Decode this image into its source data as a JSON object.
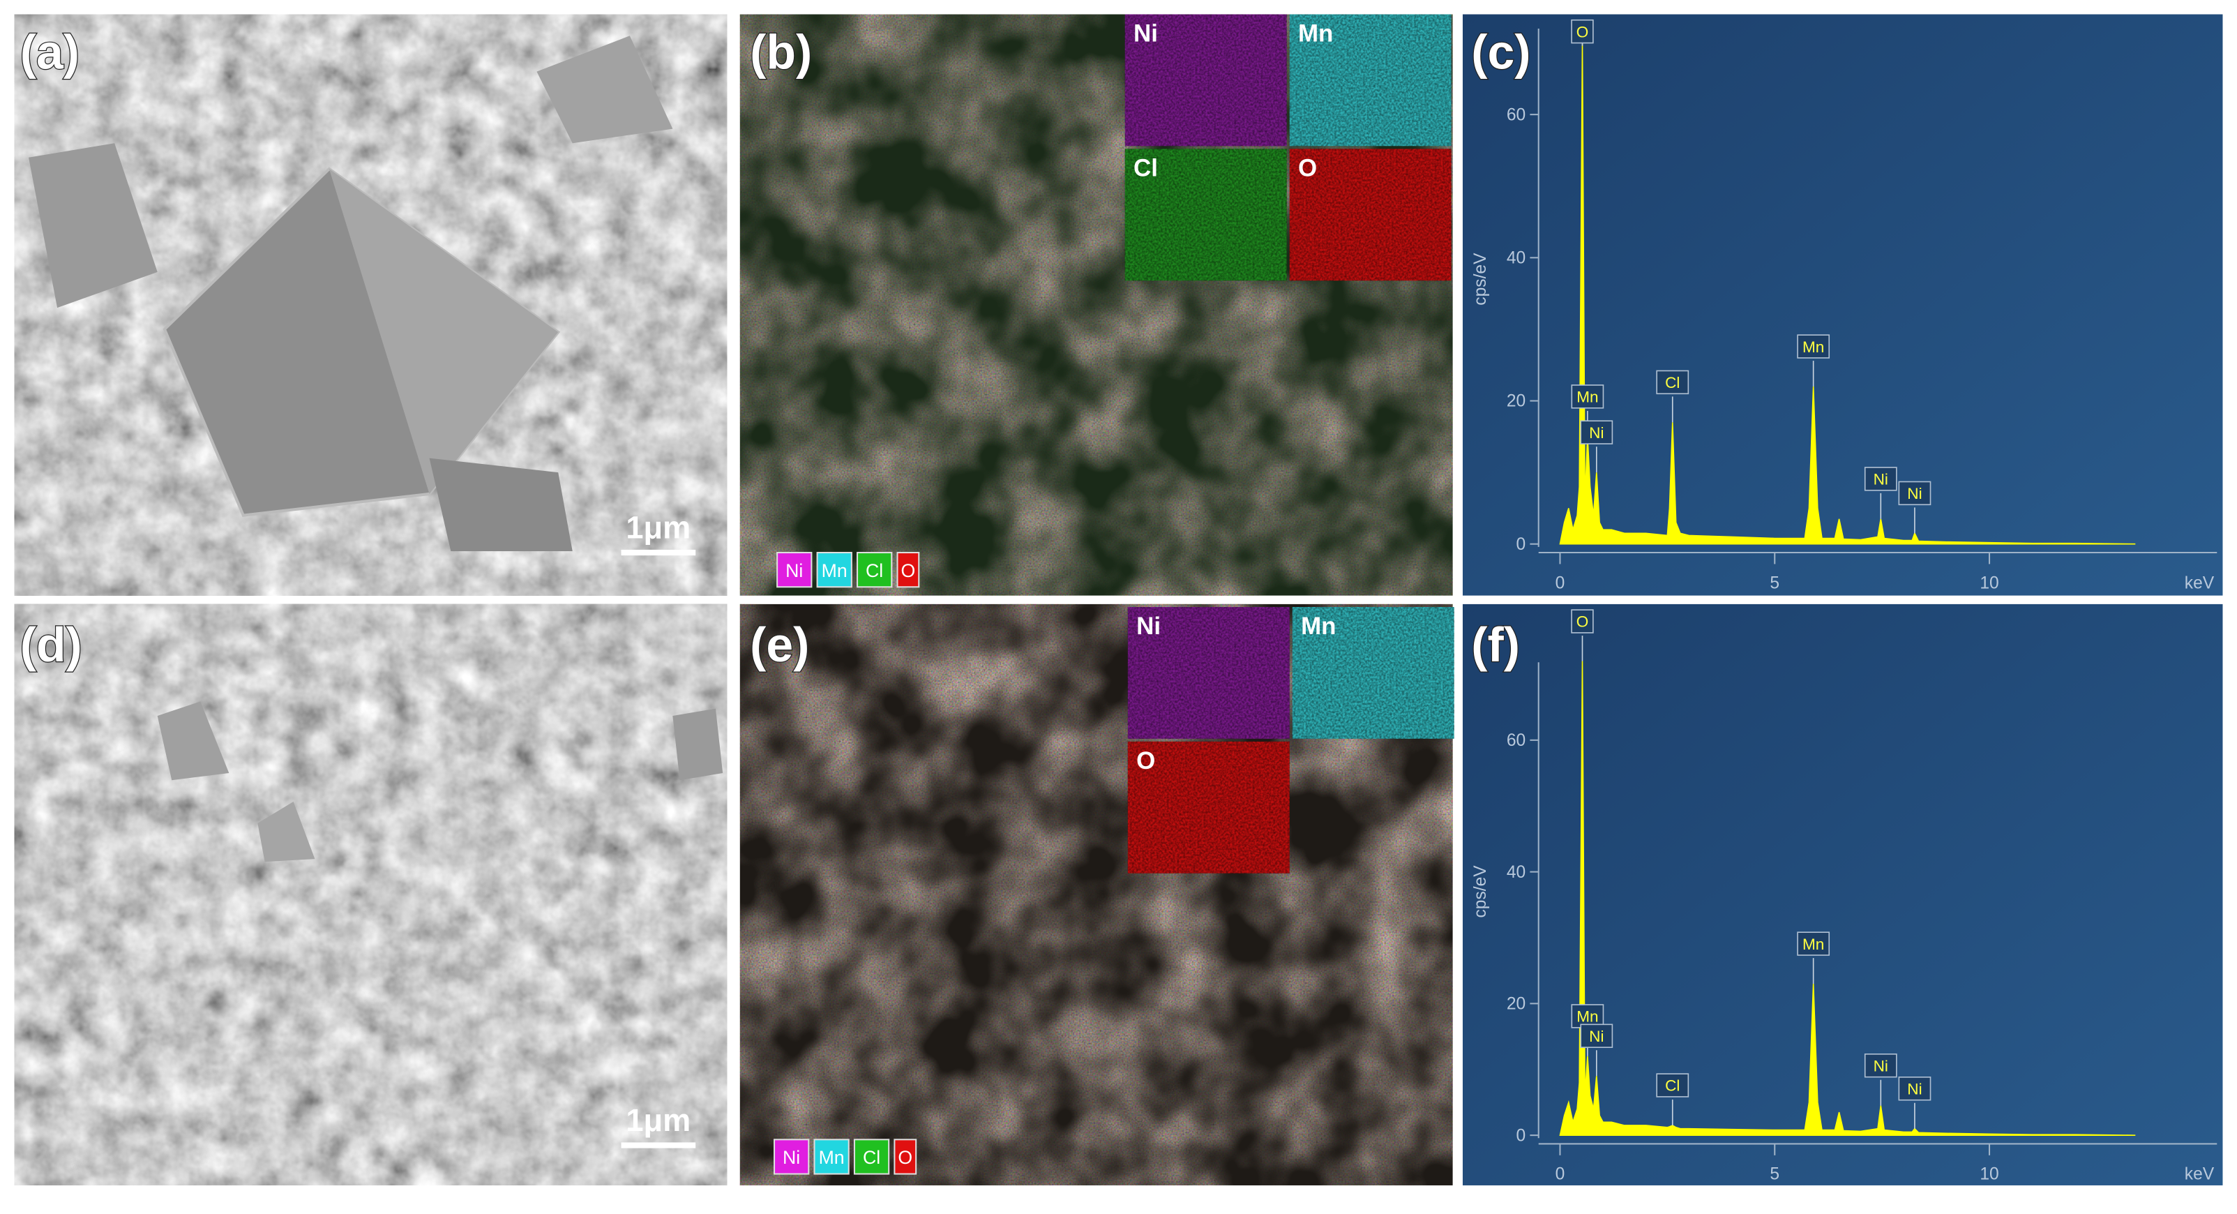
{
  "panels": {
    "a": {
      "label": "(a)",
      "scale_bar": "1μm"
    },
    "b": {
      "label": "(b)",
      "maps": [
        {
          "name": "Ni",
          "color": "#7a1a8c"
        },
        {
          "name": "Mn",
          "color": "#2fb3b8"
        },
        {
          "name": "Cl",
          "color": "#1f8a1f"
        },
        {
          "name": "O",
          "color": "#c40f0f"
        }
      ],
      "legend": [
        {
          "name": "Ni",
          "color": "#e01ee0"
        },
        {
          "name": "Mn",
          "color": "#22d6e0"
        },
        {
          "name": "Cl",
          "color": "#20c020"
        },
        {
          "name": "O",
          "color": "#e01010"
        }
      ]
    },
    "c": {
      "label": "(c)"
    },
    "d": {
      "label": "(d)",
      "scale_bar": "1μm"
    },
    "e": {
      "label": "(e)",
      "maps": [
        {
          "name": "Ni",
          "color": "#7a1a8c"
        },
        {
          "name": "Mn",
          "color": "#2fb3b8"
        },
        {
          "name": "O",
          "color": "#c40f0f"
        }
      ],
      "legend": [
        {
          "name": "Ni",
          "color": "#e01ee0"
        },
        {
          "name": "Mn",
          "color": "#22d6e0"
        },
        {
          "name": "Cl",
          "color": "#20c020"
        },
        {
          "name": "O",
          "color": "#e01010"
        }
      ]
    },
    "f": {
      "label": "(f)"
    }
  },
  "chart_data": [
    {
      "type": "area",
      "color": "#ffff00",
      "ylabel": "cps/eV",
      "xlabel": "keV",
      "xlim": [
        -0.5,
        15.3
      ],
      "ylim": [
        0,
        74
      ],
      "xticks": [
        0,
        5,
        10
      ],
      "yticks": [
        0,
        20,
        40,
        60
      ],
      "x": [
        0,
        0.1,
        0.2,
        0.3,
        0.4,
        0.45,
        0.52,
        0.58,
        0.64,
        0.7,
        0.78,
        0.85,
        0.92,
        1.0,
        1.2,
        1.5,
        2.0,
        2.5,
        2.55,
        2.62,
        2.7,
        2.8,
        3.0,
        4.0,
        5.0,
        5.7,
        5.8,
        5.9,
        6.0,
        6.1,
        6.4,
        6.5,
        6.6,
        7.0,
        7.4,
        7.47,
        7.55,
        8.0,
        8.2,
        8.26,
        8.35,
        9,
        10,
        11,
        12,
        13.4
      ],
      "values": [
        0,
        3,
        5,
        2,
        4,
        8,
        70,
        6,
        15,
        8,
        4,
        10,
        3,
        2,
        2,
        1.5,
        1.5,
        1.2,
        5,
        17,
        3,
        1.5,
        1.2,
        1,
        0.8,
        0.8,
        5,
        22,
        5,
        0.8,
        0.8,
        3.5,
        0.7,
        0.6,
        1,
        3.5,
        0.8,
        0.5,
        0.5,
        1.5,
        0.4,
        0.3,
        0.2,
        0.1,
        0.1,
        0
      ],
      "annotations": [
        {
          "text": "O",
          "x": 0.52,
          "y": 70
        },
        {
          "text": "Mn",
          "x": 0.64,
          "y": 15
        },
        {
          "text": "Ni",
          "x": 0.85,
          "y": 10
        },
        {
          "text": "Cl",
          "x": 2.62,
          "y": 17
        },
        {
          "text": "Mn",
          "x": 5.9,
          "y": 22
        },
        {
          "text": "Ni",
          "x": 7.47,
          "y": 3.5
        },
        {
          "text": "Ni",
          "x": 8.26,
          "y": 1.5
        }
      ]
    },
    {
      "type": "area",
      "color": "#ffff00",
      "ylabel": "cps/eV",
      "xlabel": "keV",
      "xlim": [
        -0.5,
        15.3
      ],
      "ylim": [
        0,
        74
      ],
      "xticks": [
        0,
        5,
        10
      ],
      "yticks": [
        0,
        20,
        40,
        60
      ],
      "x": [
        0,
        0.1,
        0.2,
        0.3,
        0.4,
        0.45,
        0.52,
        0.58,
        0.64,
        0.7,
        0.78,
        0.85,
        0.92,
        1.0,
        1.2,
        1.5,
        2.0,
        2.5,
        2.55,
        2.62,
        2.7,
        2.8,
        3.0,
        4.0,
        5.0,
        5.7,
        5.8,
        5.9,
        6.0,
        6.1,
        6.4,
        6.5,
        6.6,
        7.0,
        7.4,
        7.47,
        7.55,
        8.0,
        8.2,
        8.26,
        8.35,
        9,
        10,
        11,
        12,
        13.4
      ],
      "values": [
        0,
        3,
        5,
        2,
        4,
        8,
        72,
        6,
        12,
        6,
        4,
        9,
        3,
        2,
        2,
        1.5,
        1.5,
        1.2,
        1.3,
        1.5,
        1.2,
        1,
        1,
        0.9,
        0.8,
        0.8,
        5,
        23,
        5,
        0.8,
        0.8,
        3.5,
        0.7,
        0.6,
        1,
        4.5,
        0.8,
        0.5,
        0.5,
        1,
        0.4,
        0.3,
        0.2,
        0.1,
        0.1,
        0
      ],
      "annotations": [
        {
          "text": "O",
          "x": 0.52,
          "y": 72
        },
        {
          "text": "Mn",
          "x": 0.64,
          "y": 12
        },
        {
          "text": "Ni",
          "x": 0.85,
          "y": 9
        },
        {
          "text": "Cl",
          "x": 2.62,
          "y": 1.5
        },
        {
          "text": "Mn",
          "x": 5.9,
          "y": 23
        },
        {
          "text": "Ni",
          "x": 7.47,
          "y": 4.5
        },
        {
          "text": "Ni",
          "x": 8.26,
          "y": 1
        }
      ]
    }
  ]
}
